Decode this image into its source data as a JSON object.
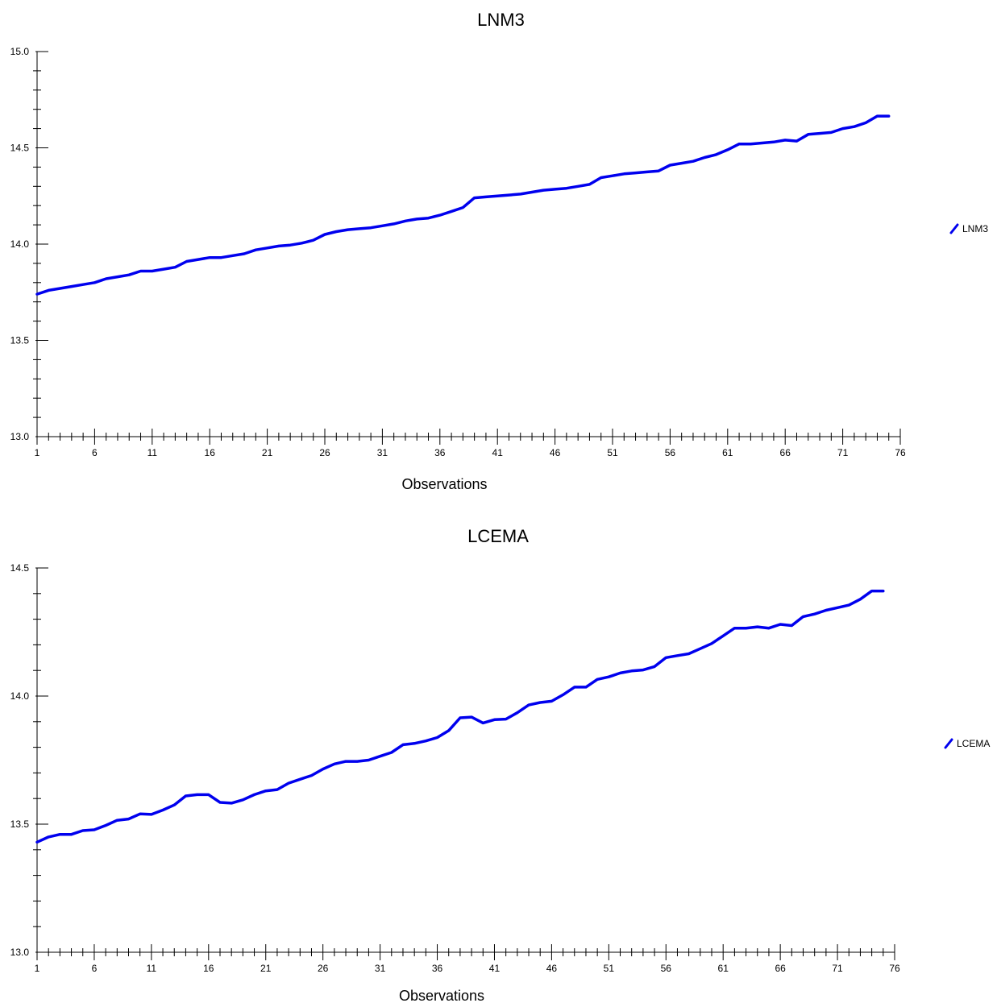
{
  "chart_data": [
    {
      "type": "line",
      "title": "LNM3",
      "xlabel": "Observations",
      "ylabel": "",
      "ylim": [
        13.0,
        15.0
      ],
      "yticks": [
        "13.0",
        "13.5",
        "14.0",
        "14.5",
        "15.0"
      ],
      "xticks": [
        "1",
        "6",
        "11",
        "16",
        "21",
        "26",
        "31",
        "36",
        "41",
        "46",
        "51",
        "56",
        "61",
        "66",
        "71",
        "76"
      ],
      "xlim": [
        1,
        76
      ],
      "color": "#0000ee",
      "grid": false,
      "legend_position": "right",
      "series": [
        {
          "name": "LNM3",
          "values": [
            13.74,
            13.76,
            13.77,
            13.78,
            13.79,
            13.8,
            13.82,
            13.83,
            13.84,
            13.86,
            13.86,
            13.87,
            13.88,
            13.91,
            13.92,
            13.93,
            13.93,
            13.94,
            13.95,
            13.97,
            13.98,
            13.99,
            13.995,
            14.005,
            14.02,
            14.05,
            14.065,
            14.075,
            14.08,
            14.085,
            14.095,
            14.105,
            14.12,
            14.13,
            14.135,
            14.15,
            14.17,
            14.19,
            14.24,
            14.245,
            14.25,
            14.255,
            14.26,
            14.27,
            14.28,
            14.285,
            14.29,
            14.3,
            14.31,
            14.345,
            14.355,
            14.365,
            14.37,
            14.375,
            14.38,
            14.41,
            14.42,
            14.43,
            14.45,
            14.465,
            14.49,
            14.52,
            14.52,
            14.525,
            14.53,
            14.54,
            14.535,
            14.57,
            14.575,
            14.58,
            14.6,
            14.61,
            14.63,
            14.665,
            14.665
          ]
        }
      ]
    },
    {
      "type": "line",
      "title": "LCEMA",
      "xlabel": "Observations",
      "ylabel": "",
      "ylim": [
        13.0,
        14.5
      ],
      "yticks": [
        "13.0",
        "13.5",
        "14.0",
        "14.5"
      ],
      "xticks": [
        "1",
        "6",
        "11",
        "16",
        "21",
        "26",
        "31",
        "36",
        "41",
        "46",
        "51",
        "56",
        "61",
        "66",
        "71",
        "76"
      ],
      "xlim": [
        1,
        76
      ],
      "color": "#0000ee",
      "grid": false,
      "legend_position": "right",
      "series": [
        {
          "name": "LCEMA",
          "values": [
            13.43,
            13.45,
            13.46,
            13.46,
            13.475,
            13.478,
            13.495,
            13.515,
            13.52,
            13.54,
            13.538,
            13.555,
            13.575,
            13.61,
            13.615,
            13.615,
            13.585,
            13.582,
            13.595,
            13.615,
            13.63,
            13.635,
            13.66,
            13.675,
            13.69,
            13.715,
            13.735,
            13.745,
            13.745,
            13.75,
            13.765,
            13.78,
            13.81,
            13.815,
            13.825,
            13.838,
            13.865,
            13.915,
            13.918,
            13.895,
            13.908,
            13.91,
            13.935,
            13.965,
            13.975,
            13.98,
            14.005,
            14.035,
            14.035,
            14.065,
            14.075,
            14.09,
            14.098,
            14.102,
            14.115,
            14.15,
            14.158,
            14.165,
            14.185,
            14.205,
            14.235,
            14.265,
            14.265,
            14.27,
            14.265,
            14.28,
            14.275,
            14.31,
            14.32,
            14.335,
            14.345,
            14.355,
            14.378,
            14.41,
            14.41
          ]
        }
      ]
    }
  ]
}
